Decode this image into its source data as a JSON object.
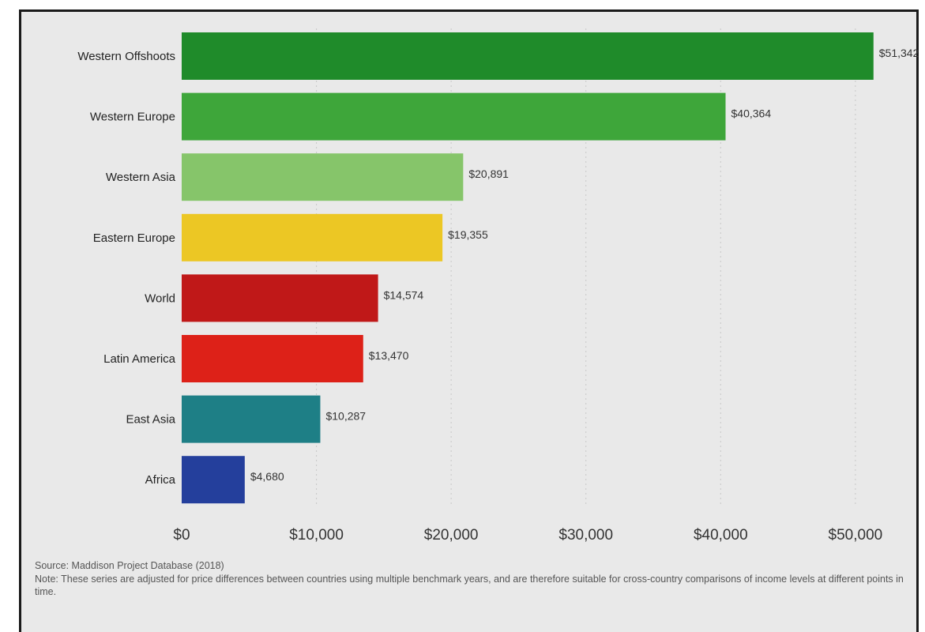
{
  "chart_data": {
    "type": "bar",
    "orientation": "horizontal",
    "categories": [
      "Western Offshoots",
      "Western Europe",
      "Western Asia",
      "Eastern Europe",
      "World",
      "Latin America",
      "East Asia",
      "Africa"
    ],
    "values": [
      51342,
      40364,
      20891,
      19355,
      14574,
      13470,
      10287,
      4680
    ],
    "value_labels": [
      "$51,342",
      "$40,364",
      "$20,891",
      "$19,355",
      "$14,574",
      "$13,470",
      "$10,287",
      "$4,680"
    ],
    "colors": [
      "#1f8b2a",
      "#3ea63a",
      "#86c56a",
      "#ecc724",
      "#c01818",
      "#dd2118",
      "#1e7f86",
      "#243f9c"
    ],
    "xlim": [
      0,
      52000
    ],
    "x_ticks": [
      0,
      10000,
      20000,
      30000,
      40000,
      50000
    ],
    "x_tick_labels": [
      "$0",
      "$10,000",
      "$20,000",
      "$30,000",
      "$40,000",
      "$50,000"
    ],
    "grid": "vertical-dotted",
    "title": "",
    "xlabel": "",
    "ylabel": ""
  },
  "footnotes": {
    "source": "Source: Maddison Project Database (2018)",
    "note": "Note: These series are adjusted for price differences between countries using multiple benchmark years, and are therefore suitable for cross-country comparisons of income levels at different points in time."
  }
}
